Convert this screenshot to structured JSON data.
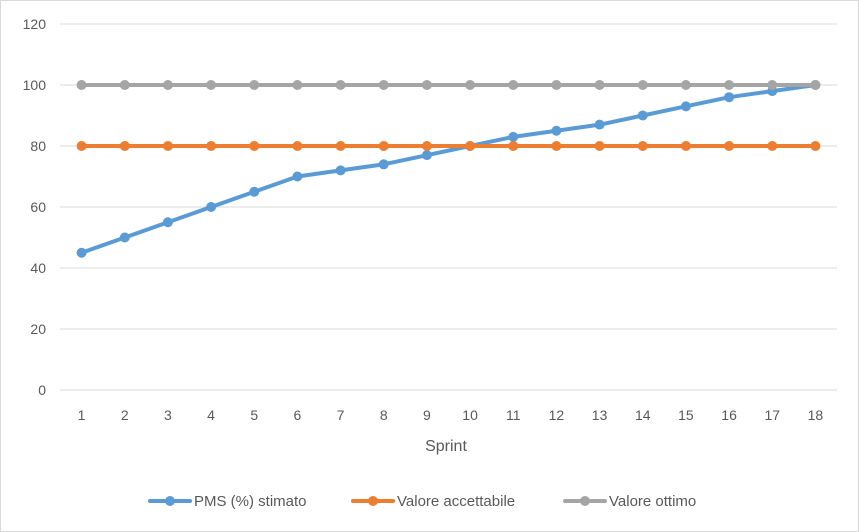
{
  "chart_data": {
    "type": "line",
    "title": "",
    "xlabel": "Sprint",
    "ylabel": "",
    "categories": [
      "1",
      "2",
      "3",
      "4",
      "5",
      "6",
      "7",
      "8",
      "9",
      "10",
      "11",
      "12",
      "13",
      "14",
      "15",
      "16",
      "17",
      "18"
    ],
    "ylim": [
      0,
      120
    ],
    "yticks": [
      "0",
      "20",
      "40",
      "60",
      "80",
      "100",
      "120"
    ],
    "grid": "horizontal",
    "legend_position": "bottom",
    "series": [
      {
        "name": "PMS (%) stimato",
        "color": "#5b9bd5",
        "values": [
          45,
          50,
          55,
          60,
          65,
          70,
          72,
          74,
          77,
          80,
          83,
          85,
          87,
          90,
          93,
          96,
          98,
          100
        ]
      },
      {
        "name": "Valore accettabile",
        "color": "#ed7d31",
        "values": [
          80,
          80,
          80,
          80,
          80,
          80,
          80,
          80,
          80,
          80,
          80,
          80,
          80,
          80,
          80,
          80,
          80,
          80
        ]
      },
      {
        "name": "Valore ottimo",
        "color": "#a5a5a5",
        "values": [
          100,
          100,
          100,
          100,
          100,
          100,
          100,
          100,
          100,
          100,
          100,
          100,
          100,
          100,
          100,
          100,
          100,
          100
        ]
      }
    ]
  }
}
